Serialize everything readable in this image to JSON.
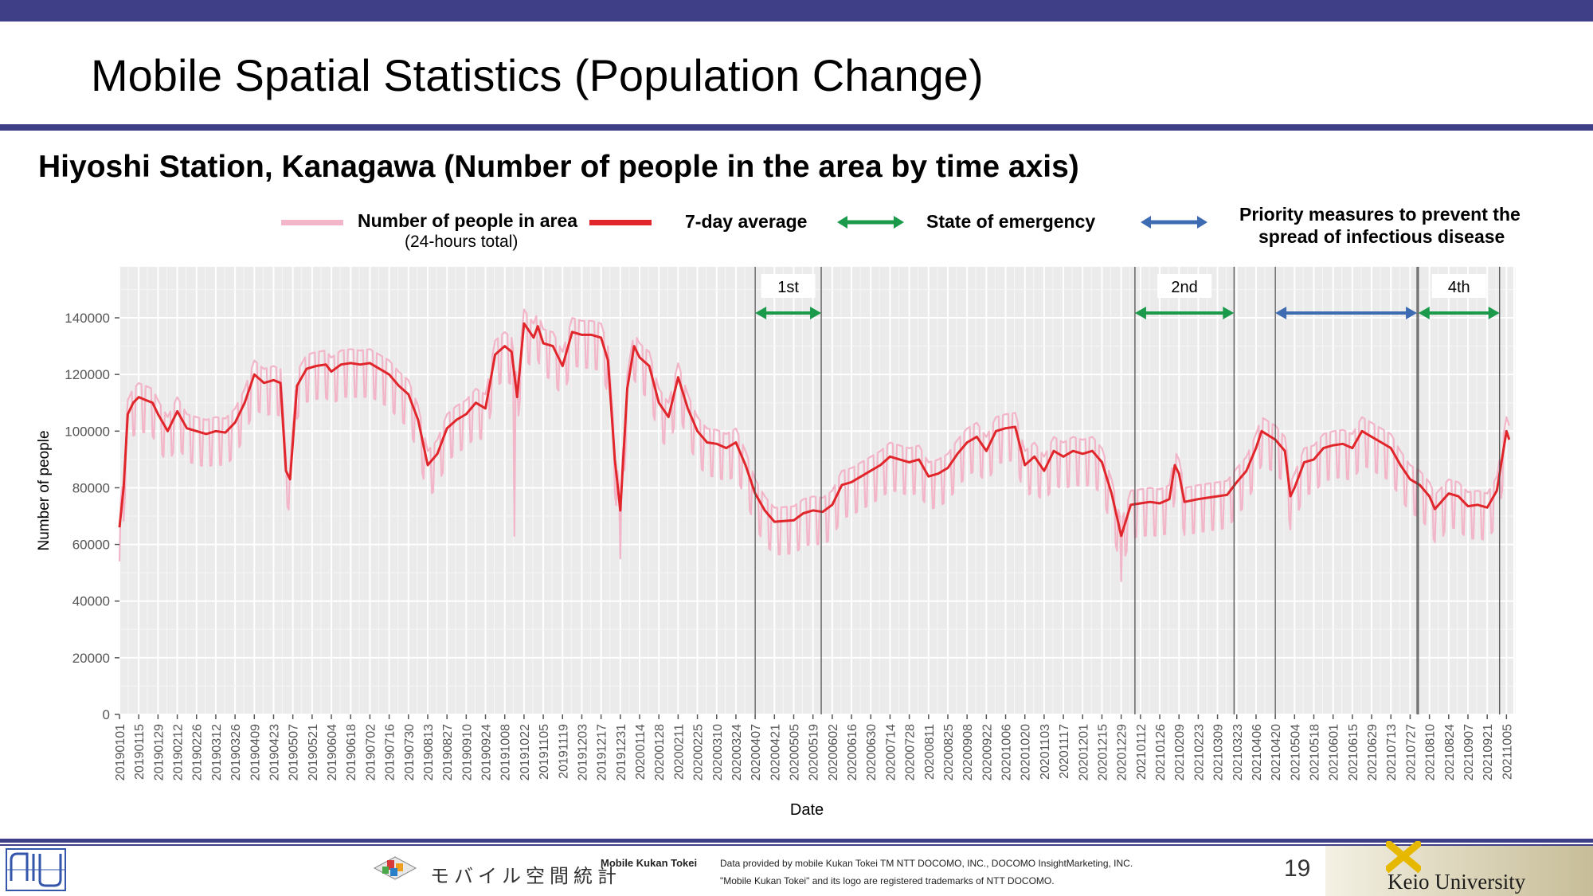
{
  "slide": {
    "title": "Mobile Spatial Statistics (Population Change)",
    "subtitle": "Hiyoshi Station, Kanagawa (Number of people in the area by time axis)",
    "page_number": "19"
  },
  "legend": {
    "people_label": "Number of people in area",
    "people_sublabel": "(24-hours total)",
    "avg_label": "7-day average",
    "emergency_label": "State of emergency",
    "priority_label_1": "Priority measures to prevent the",
    "priority_label_2": "spread of infectious disease",
    "colors": {
      "people": "#f2b6c8",
      "avg": "#e0262b",
      "emergency": "#1c9a4c",
      "priority": "#3d6cb3"
    }
  },
  "footer": {
    "brand_jp": "モバイル空間統計",
    "brand_en": "Mobile Kukan Tokei",
    "credit_1": "Data provided by mobile Kukan Tokei TM NTT DOCOMO, INC., DOCOMO InsightMarketing, INC.",
    "credit_2": "\"Mobile Kukan Tokei\" and its logo are registered trademarks of NTT DOCOMO.",
    "university": "Keio University"
  },
  "chart_data": {
    "type": "line",
    "xlabel": "Date",
    "ylabel": "Number of people",
    "x_start": "20190101",
    "x_end": "20211010",
    "ylim": [
      0,
      158000
    ],
    "yticks": [
      0,
      20000,
      40000,
      60000,
      80000,
      100000,
      120000,
      140000
    ],
    "grid": true,
    "xtick_labels": [
      "20190101",
      "20190115",
      "20190129",
      "20190212",
      "20190226",
      "20190312",
      "20190326",
      "20190409",
      "20190423",
      "20190507",
      "20190521",
      "20190604",
      "20190618",
      "20190702",
      "20190716",
      "20190730",
      "20190813",
      "20190827",
      "20190910",
      "20190924",
      "20191008",
      "20191022",
      "20191105",
      "20191119",
      "20191203",
      "20191217",
      "20191231",
      "20200114",
      "20200128",
      "20200211",
      "20200225",
      "20200310",
      "20200324",
      "20200407",
      "20200421",
      "20200505",
      "20200519",
      "20200602",
      "20200616",
      "20200630",
      "20200714",
      "20200728",
      "20200811",
      "20200825",
      "20200908",
      "20200922",
      "20201006",
      "20201020",
      "20201103",
      "20201117",
      "20201201",
      "20201215",
      "20201229",
      "20210112",
      "20210126",
      "20210209",
      "20210223",
      "20210309",
      "20210323",
      "20210406",
      "20210420",
      "20210504",
      "20210518",
      "20210601",
      "20210615",
      "20210629",
      "20210713",
      "20210727",
      "20210810",
      "20210824",
      "20210907",
      "20210921",
      "20211005"
    ],
    "series": [
      {
        "name": "7-day average",
        "color": "#e0262b",
        "points": [
          [
            "20190101",
            66000
          ],
          [
            "20190104",
            80000
          ],
          [
            "20190107",
            106000
          ],
          [
            "20190111",
            110000
          ],
          [
            "20190115",
            112000
          ],
          [
            "20190120",
            111000
          ],
          [
            "20190125",
            110000
          ],
          [
            "20190129",
            106000
          ],
          [
            "20190205",
            100000
          ],
          [
            "20190212",
            107000
          ],
          [
            "20190219",
            101000
          ],
          [
            "20190226",
            100000
          ],
          [
            "20190305",
            99000
          ],
          [
            "20190312",
            100000
          ],
          [
            "20190319",
            99500
          ],
          [
            "20190326",
            103000
          ],
          [
            "20190402",
            110000
          ],
          [
            "20190409",
            120000
          ],
          [
            "20190416",
            117000
          ],
          [
            "20190423",
            118000
          ],
          [
            "20190428",
            117000
          ],
          [
            "20190502",
            86000
          ],
          [
            "20190505",
            83000
          ],
          [
            "20190510",
            116000
          ],
          [
            "20190517",
            122000
          ],
          [
            "20190524",
            123000
          ],
          [
            "20190531",
            123500
          ],
          [
            "20190604",
            121000
          ],
          [
            "20190611",
            123500
          ],
          [
            "20190618",
            124000
          ],
          [
            "20190625",
            123500
          ],
          [
            "20190702",
            124000
          ],
          [
            "20190709",
            122000
          ],
          [
            "20190716",
            120000
          ],
          [
            "20190723",
            116000
          ],
          [
            "20190730",
            113000
          ],
          [
            "20190806",
            104000
          ],
          [
            "20190813",
            88000
          ],
          [
            "20190820",
            92000
          ],
          [
            "20190827",
            101000
          ],
          [
            "20190903",
            104000
          ],
          [
            "20190910",
            106000
          ],
          [
            "20190917",
            110000
          ],
          [
            "20190924",
            108000
          ],
          [
            "20191001",
            127000
          ],
          [
            "20191008",
            130000
          ],
          [
            "20191013",
            128000
          ],
          [
            "20191017",
            112000
          ],
          [
            "20191022",
            138000
          ],
          [
            "20191029",
            133000
          ],
          [
            "20191101",
            137000
          ],
          [
            "20191105",
            131000
          ],
          [
            "20191112",
            130000
          ],
          [
            "20191119",
            123000
          ],
          [
            "20191126",
            135000
          ],
          [
            "20191203",
            134000
          ],
          [
            "20191210",
            134000
          ],
          [
            "20191217",
            133000
          ],
          [
            "20191222",
            125000
          ],
          [
            "20191227",
            90000
          ],
          [
            "20191231",
            72000
          ],
          [
            "20200105",
            115000
          ],
          [
            "20200110",
            130000
          ],
          [
            "20200114",
            126000
          ],
          [
            "20200121",
            123000
          ],
          [
            "20200128",
            110000
          ],
          [
            "20200204",
            105000
          ],
          [
            "20200211",
            119000
          ],
          [
            "20200218",
            108000
          ],
          [
            "20200225",
            100000
          ],
          [
            "20200303",
            96000
          ],
          [
            "20200310",
            95500
          ],
          [
            "20200317",
            94000
          ],
          [
            "20200324",
            96000
          ],
          [
            "20200331",
            88000
          ],
          [
            "20200407",
            78000
          ],
          [
            "20200414",
            72000
          ],
          [
            "20200421",
            68000
          ],
          [
            "20200505",
            68500
          ],
          [
            "20200512",
            71000
          ],
          [
            "20200519",
            72000
          ],
          [
            "20200526",
            71500
          ],
          [
            "20200602",
            74000
          ],
          [
            "20200609",
            81000
          ],
          [
            "20200616",
            82000
          ],
          [
            "20200623",
            84000
          ],
          [
            "20200630",
            86000
          ],
          [
            "20200707",
            88000
          ],
          [
            "20200714",
            91000
          ],
          [
            "20200721",
            90000
          ],
          [
            "20200728",
            89000
          ],
          [
            "20200804",
            90000
          ],
          [
            "20200811",
            84000
          ],
          [
            "20200818",
            85000
          ],
          [
            "20200825",
            87000
          ],
          [
            "20200901",
            92000
          ],
          [
            "20200908",
            96000
          ],
          [
            "20200915",
            98000
          ],
          [
            "20200922",
            93000
          ],
          [
            "20200929",
            100000
          ],
          [
            "20201006",
            101000
          ],
          [
            "20201013",
            101500
          ],
          [
            "20201020",
            88000
          ],
          [
            "20201027",
            91000
          ],
          [
            "20201103",
            86000
          ],
          [
            "20201110",
            93000
          ],
          [
            "20201117",
            91000
          ],
          [
            "20201124",
            93000
          ],
          [
            "20201201",
            92000
          ],
          [
            "20201208",
            93000
          ],
          [
            "20201215",
            89000
          ],
          [
            "20201222",
            78000
          ],
          [
            "20201229",
            63000
          ],
          [
            "20210105",
            74000
          ],
          [
            "20210112",
            74500
          ],
          [
            "20210119",
            75000
          ],
          [
            "20210126",
            74500
          ],
          [
            "20210202",
            76000
          ],
          [
            "20210206",
            88000
          ],
          [
            "20210209",
            85000
          ],
          [
            "20210213",
            75000
          ],
          [
            "20210223",
            76000
          ],
          [
            "20210302",
            76500
          ],
          [
            "20210309",
            77000
          ],
          [
            "20210316",
            77500
          ],
          [
            "20210323",
            82000
          ],
          [
            "20210330",
            86000
          ],
          [
            "20210406",
            94000
          ],
          [
            "20210410",
            100000
          ],
          [
            "20210420",
            97000
          ],
          [
            "20210427",
            93000
          ],
          [
            "20210501",
            77000
          ],
          [
            "20210504",
            80000
          ],
          [
            "20210511",
            89000
          ],
          [
            "20210518",
            90000
          ],
          [
            "20210525",
            94000
          ],
          [
            "20210601",
            95000
          ],
          [
            "20210608",
            95500
          ],
          [
            "20210615",
            94000
          ],
          [
            "20210622",
            100000
          ],
          [
            "20210629",
            98000
          ],
          [
            "20210706",
            96000
          ],
          [
            "20210713",
            94000
          ],
          [
            "20210720",
            88000
          ],
          [
            "20210727",
            83000
          ],
          [
            "20210803",
            81000
          ],
          [
            "20210810",
            77000
          ],
          [
            "20210814",
            72500
          ],
          [
            "20210824",
            78000
          ],
          [
            "20210831",
            77000
          ],
          [
            "20210907",
            73500
          ],
          [
            "20210914",
            74000
          ],
          [
            "20210921",
            73000
          ],
          [
            "20210928",
            79000
          ],
          [
            "20211005",
            100000
          ],
          [
            "20211007",
            97000
          ]
        ]
      },
      {
        "name": "Number of people in area",
        "color": "#f2b6c8",
        "daily_spread": 9000,
        "outliers": [
          [
            "20190101",
            54000
          ],
          [
            "20191015",
            63000
          ],
          [
            "20191231",
            55000
          ],
          [
            "20201229",
            47000
          ],
          [
            "20210820",
            63000
          ]
        ]
      }
    ],
    "periods": [
      {
        "label": "1st",
        "kind": "emergency",
        "start": "20200407",
        "end": "20200525"
      },
      {
        "label": "2nd",
        "kind": "emergency",
        "start": "20210108",
        "end": "20210321"
      },
      {
        "label": "",
        "kind": "priority",
        "start": "20210420",
        "end": "20210801"
      },
      {
        "label": "4th",
        "kind": "emergency",
        "start": "20210802",
        "end": "20210930"
      }
    ]
  }
}
